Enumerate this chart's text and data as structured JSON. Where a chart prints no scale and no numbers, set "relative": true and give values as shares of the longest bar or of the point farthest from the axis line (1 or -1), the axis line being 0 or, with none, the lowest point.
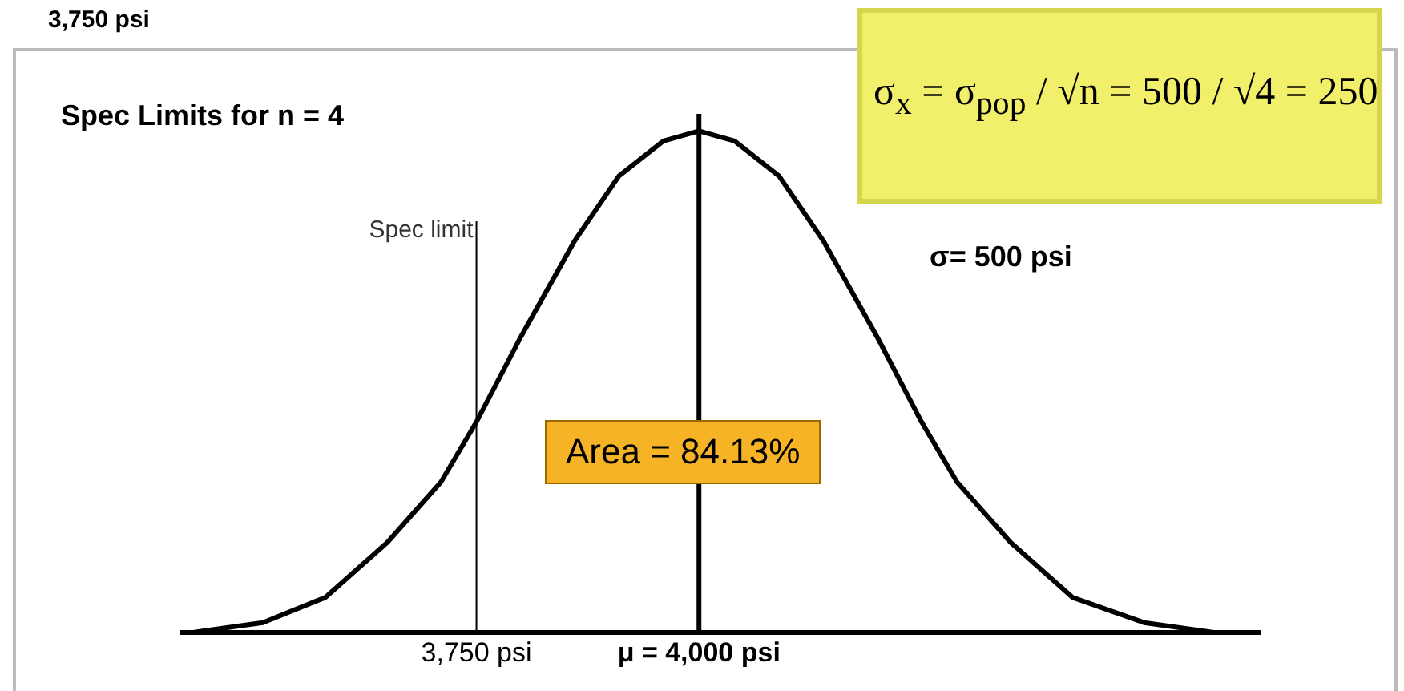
{
  "chart_data": {
    "type": "line",
    "title": "Spec Limits for n = 4",
    "relative": true,
    "legend": false,
    "grid": false,
    "marker": "none",
    "x": [
      3430,
      3510,
      3580,
      3650,
      3710,
      3750,
      3800,
      3860,
      3910,
      3960,
      4000,
      4040,
      4090,
      4140,
      4200,
      4250,
      4290,
      4350,
      4420,
      4500,
      4580
    ],
    "series": [
      {
        "color": "#000000",
        "values": [
          0,
          0.02,
          0.07,
          0.18,
          0.3,
          0.42,
          0.59,
          0.78,
          0.91,
          0.98,
          1,
          0.98,
          0.91,
          0.78,
          0.59,
          0.42,
          0.3,
          0.18,
          0.07,
          0.02,
          0
        ]
      }
    ],
    "xlim": [
      3420,
      4630
    ],
    "xticks": [
      {
        "value": 3750,
        "label": "3,750 psi"
      },
      {
        "value": 4000,
        "label": "μ = 4,000 psi"
      }
    ],
    "ref_lines": [
      {
        "axis": "x",
        "value": 3750,
        "label": "Spec limit",
        "color": "#000000"
      },
      {
        "axis": "x",
        "value": 4000,
        "label": null,
        "color": "#000000"
      }
    ],
    "annotations": [
      "3,750 psi",
      "σ$_{x}$ = σ$_{pop}$ / √n = 500 / √4 = 250",
      "σ= 500 psi",
      "Area = 84.13%"
    ]
  }
}
